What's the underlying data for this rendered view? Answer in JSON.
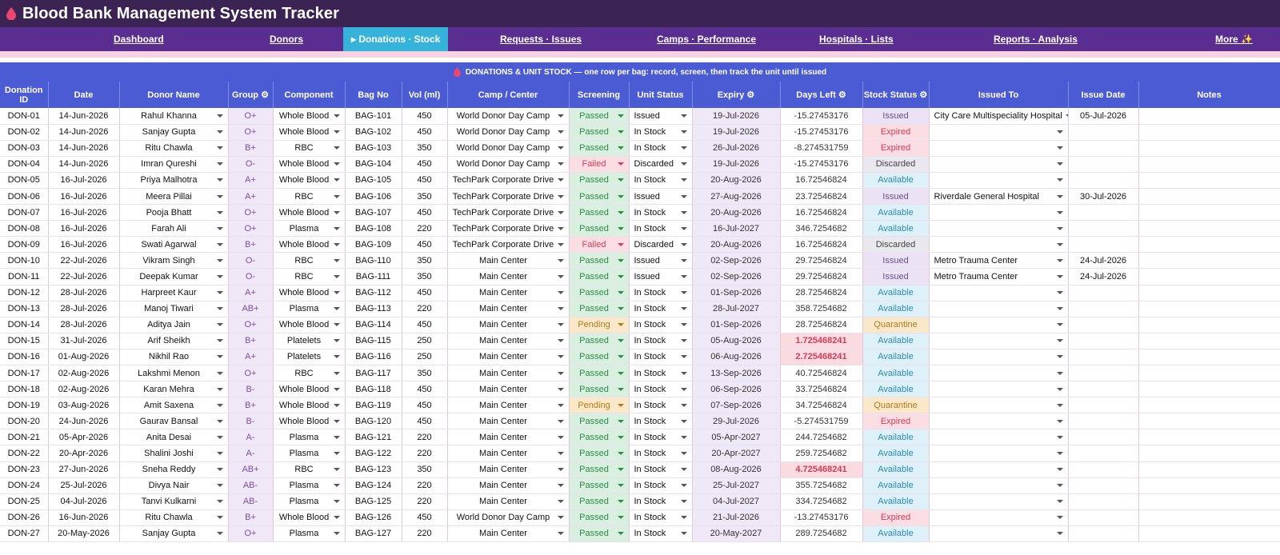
{
  "app": {
    "title": "Blood Bank Management System Tracker"
  },
  "nav": [
    {
      "label": "Dashboard",
      "left": 142,
      "active": false
    },
    {
      "label": "Donors",
      "left": 337,
      "active": false
    },
    {
      "label": "▸ Donations · Stock",
      "left": 429,
      "active": true
    },
    {
      "label": "Requests · Issues",
      "left": 625,
      "active": false
    },
    {
      "label": "Camps · Performance",
      "left": 821,
      "active": false
    },
    {
      "label": "Hospitals · Lists",
      "left": 1024,
      "active": false
    },
    {
      "label": "Reports · Analysis",
      "left": 1242,
      "active": false
    },
    {
      "label": "More ✨",
      "left": 1519,
      "active": false
    }
  ],
  "banner": {
    "text": "DONATIONS & UNIT STOCK — one row per bag: record, screen, then track the unit until issued"
  },
  "columns": [
    "Donation ID",
    "Date",
    "Donor Name",
    "Group ⚙",
    "Component",
    "Bag No",
    "Vol (ml)",
    "Camp / Center",
    "Screening",
    "Unit Status",
    "Expiry ⚙",
    "Days Left ⚙",
    "Stock Status ⚙",
    "Issued To",
    "Issue Date",
    "Notes"
  ],
  "rows": [
    {
      "id": "DON-01",
      "date": "14-Jun-2026",
      "donor": "Rahul Khanna",
      "group": "O+",
      "component": "Whole Blood",
      "bag": "BAG-101",
      "vol": "450",
      "camp": "World Donor Day Camp",
      "screening": "Passed",
      "unit": "Issued",
      "expiry": "19-Jul-2026",
      "days": "-15.27453176",
      "stock": "Issued",
      "issued_to": "City Care Multispeciality Hospital",
      "issue_date": "05-Jul-2026"
    },
    {
      "id": "DON-02",
      "date": "14-Jun-2026",
      "donor": "Sanjay Gupta",
      "group": "O+",
      "component": "Whole Blood",
      "bag": "BAG-102",
      "vol": "450",
      "camp": "World Donor Day Camp",
      "screening": "Passed",
      "unit": "In Stock",
      "expiry": "19-Jul-2026",
      "days": "-15.27453176",
      "stock": "Expired",
      "issued_to": "",
      "issue_date": ""
    },
    {
      "id": "DON-03",
      "date": "14-Jun-2026",
      "donor": "Ritu Chawla",
      "group": "B+",
      "component": "RBC",
      "bag": "BAG-103",
      "vol": "350",
      "camp": "World Donor Day Camp",
      "screening": "Passed",
      "unit": "In Stock",
      "expiry": "26-Jul-2026",
      "days": "-8.274531759",
      "stock": "Expired",
      "issued_to": "",
      "issue_date": ""
    },
    {
      "id": "DON-04",
      "date": "14-Jun-2026",
      "donor": "Imran Qureshi",
      "group": "O-",
      "component": "Whole Blood",
      "bag": "BAG-104",
      "vol": "450",
      "camp": "World Donor Day Camp",
      "screening": "Failed",
      "unit": "Discarded",
      "expiry": "19-Jul-2026",
      "days": "-15.27453176",
      "stock": "Discarded",
      "issued_to": "",
      "issue_date": ""
    },
    {
      "id": "DON-05",
      "date": "16-Jul-2026",
      "donor": "Priya Malhotra",
      "group": "A+",
      "component": "Whole Blood",
      "bag": "BAG-105",
      "vol": "450",
      "camp": "TechPark Corporate Drive",
      "screening": "Passed",
      "unit": "In Stock",
      "expiry": "20-Aug-2026",
      "days": "16.72546824",
      "stock": "Available",
      "issued_to": "",
      "issue_date": ""
    },
    {
      "id": "DON-06",
      "date": "16-Jul-2026",
      "donor": "Meera Pillai",
      "group": "A+",
      "component": "RBC",
      "bag": "BAG-106",
      "vol": "350",
      "camp": "TechPark Corporate Drive",
      "screening": "Passed",
      "unit": "Issued",
      "expiry": "27-Aug-2026",
      "days": "23.72546824",
      "stock": "Issued",
      "issued_to": "Riverdale General Hospital",
      "issue_date": "30-Jul-2026"
    },
    {
      "id": "DON-07",
      "date": "16-Jul-2026",
      "donor": "Pooja Bhatt",
      "group": "O+",
      "component": "Whole Blood",
      "bag": "BAG-107",
      "vol": "450",
      "camp": "TechPark Corporate Drive",
      "screening": "Passed",
      "unit": "In Stock",
      "expiry": "20-Aug-2026",
      "days": "16.72546824",
      "stock": "Available",
      "issued_to": "",
      "issue_date": ""
    },
    {
      "id": "DON-08",
      "date": "16-Jul-2026",
      "donor": "Farah Ali",
      "group": "O+",
      "component": "Plasma",
      "bag": "BAG-108",
      "vol": "220",
      "camp": "TechPark Corporate Drive",
      "screening": "Passed",
      "unit": "In Stock",
      "expiry": "16-Jul-2027",
      "days": "346.7254682",
      "stock": "Available",
      "issued_to": "",
      "issue_date": ""
    },
    {
      "id": "DON-09",
      "date": "16-Jul-2026",
      "donor": "Swati Agarwal",
      "group": "B+",
      "component": "Whole Blood",
      "bag": "BAG-109",
      "vol": "450",
      "camp": "TechPark Corporate Drive",
      "screening": "Failed",
      "unit": "Discarded",
      "expiry": "20-Aug-2026",
      "days": "16.72546824",
      "stock": "Discarded",
      "issued_to": "",
      "issue_date": ""
    },
    {
      "id": "DON-10",
      "date": "22-Jul-2026",
      "donor": "Vikram Singh",
      "group": "O-",
      "component": "RBC",
      "bag": "BAG-110",
      "vol": "350",
      "camp": "Main Center",
      "screening": "Passed",
      "unit": "Issued",
      "expiry": "02-Sep-2026",
      "days": "29.72546824",
      "stock": "Issued",
      "issued_to": "Metro Trauma Center",
      "issue_date": "24-Jul-2026"
    },
    {
      "id": "DON-11",
      "date": "22-Jul-2026",
      "donor": "Deepak Kumar",
      "group": "O-",
      "component": "RBC",
      "bag": "BAG-111",
      "vol": "350",
      "camp": "Main Center",
      "screening": "Passed",
      "unit": "Issued",
      "expiry": "02-Sep-2026",
      "days": "29.72546824",
      "stock": "Issued",
      "issued_to": "Metro Trauma Center",
      "issue_date": "24-Jul-2026"
    },
    {
      "id": "DON-12",
      "date": "28-Jul-2026",
      "donor": "Harpreet Kaur",
      "group": "A+",
      "component": "Whole Blood",
      "bag": "BAG-112",
      "vol": "450",
      "camp": "Main Center",
      "screening": "Passed",
      "unit": "In Stock",
      "expiry": "01-Sep-2026",
      "days": "28.72546824",
      "stock": "Available",
      "issued_to": "",
      "issue_date": ""
    },
    {
      "id": "DON-13",
      "date": "28-Jul-2026",
      "donor": "Manoj Tiwari",
      "group": "AB+",
      "component": "Plasma",
      "bag": "BAG-113",
      "vol": "220",
      "camp": "Main Center",
      "screening": "Passed",
      "unit": "In Stock",
      "expiry": "28-Jul-2027",
      "days": "358.7254682",
      "stock": "Available",
      "issued_to": "",
      "issue_date": ""
    },
    {
      "id": "DON-14",
      "date": "28-Jul-2026",
      "donor": "Aditya Jain",
      "group": "O+",
      "component": "Whole Blood",
      "bag": "BAG-114",
      "vol": "450",
      "camp": "Main Center",
      "screening": "Pending",
      "unit": "In Stock",
      "expiry": "01-Sep-2026",
      "days": "28.72546824",
      "stock": "Quarantine",
      "issued_to": "",
      "issue_date": ""
    },
    {
      "id": "DON-15",
      "date": "31-Jul-2026",
      "donor": "Arif Sheikh",
      "group": "B+",
      "component": "Platelets",
      "bag": "BAG-115",
      "vol": "250",
      "camp": "Main Center",
      "screening": "Passed",
      "unit": "In Stock",
      "expiry": "05-Aug-2026",
      "days": "1.725468241",
      "stock": "Available",
      "issued_to": "",
      "issue_date": "",
      "low": true
    },
    {
      "id": "DON-16",
      "date": "01-Aug-2026",
      "donor": "Nikhil Rao",
      "group": "A+",
      "component": "Platelets",
      "bag": "BAG-116",
      "vol": "250",
      "camp": "Main Center",
      "screening": "Passed",
      "unit": "In Stock",
      "expiry": "06-Aug-2026",
      "days": "2.725468241",
      "stock": "Available",
      "issued_to": "",
      "issue_date": "",
      "low": true
    },
    {
      "id": "DON-17",
      "date": "02-Aug-2026",
      "donor": "Lakshmi Menon",
      "group": "O+",
      "component": "RBC",
      "bag": "BAG-117",
      "vol": "350",
      "camp": "Main Center",
      "screening": "Passed",
      "unit": "In Stock",
      "expiry": "13-Sep-2026",
      "days": "40.72546824",
      "stock": "Available",
      "issued_to": "",
      "issue_date": ""
    },
    {
      "id": "DON-18",
      "date": "02-Aug-2026",
      "donor": "Karan Mehra",
      "group": "B-",
      "component": "Whole Blood",
      "bag": "BAG-118",
      "vol": "450",
      "camp": "Main Center",
      "screening": "Passed",
      "unit": "In Stock",
      "expiry": "06-Sep-2026",
      "days": "33.72546824",
      "stock": "Available",
      "issued_to": "",
      "issue_date": ""
    },
    {
      "id": "DON-19",
      "date": "03-Aug-2026",
      "donor": "Amit Saxena",
      "group": "B+",
      "component": "Whole Blood",
      "bag": "BAG-119",
      "vol": "450",
      "camp": "Main Center",
      "screening": "Pending",
      "unit": "In Stock",
      "expiry": "07-Sep-2026",
      "days": "34.72546824",
      "stock": "Quarantine",
      "issued_to": "",
      "issue_date": ""
    },
    {
      "id": "DON-20",
      "date": "24-Jun-2026",
      "donor": "Gaurav Bansal",
      "group": "B-",
      "component": "Whole Blood",
      "bag": "BAG-120",
      "vol": "450",
      "camp": "Main Center",
      "screening": "Passed",
      "unit": "In Stock",
      "expiry": "29-Jul-2026",
      "days": "-5.274531759",
      "stock": "Expired",
      "issued_to": "",
      "issue_date": ""
    },
    {
      "id": "DON-21",
      "date": "05-Apr-2026",
      "donor": "Anita Desai",
      "group": "A-",
      "component": "Plasma",
      "bag": "BAG-121",
      "vol": "220",
      "camp": "Main Center",
      "screening": "Passed",
      "unit": "In Stock",
      "expiry": "05-Apr-2027",
      "days": "244.7254682",
      "stock": "Available",
      "issued_to": "",
      "issue_date": ""
    },
    {
      "id": "DON-22",
      "date": "20-Apr-2026",
      "donor": "Shalini Joshi",
      "group": "A-",
      "component": "Plasma",
      "bag": "BAG-122",
      "vol": "220",
      "camp": "Main Center",
      "screening": "Passed",
      "unit": "In Stock",
      "expiry": "20-Apr-2027",
      "days": "259.7254682",
      "stock": "Available",
      "issued_to": "",
      "issue_date": ""
    },
    {
      "id": "DON-23",
      "date": "27-Jun-2026",
      "donor": "Sneha Reddy",
      "group": "AB+",
      "component": "RBC",
      "bag": "BAG-123",
      "vol": "350",
      "camp": "Main Center",
      "screening": "Passed",
      "unit": "In Stock",
      "expiry": "08-Aug-2026",
      "days": "4.725468241",
      "stock": "Available",
      "issued_to": "",
      "issue_date": "",
      "low": true
    },
    {
      "id": "DON-24",
      "date": "25-Jul-2026",
      "donor": "Divya Nair",
      "group": "AB-",
      "component": "Plasma",
      "bag": "BAG-124",
      "vol": "220",
      "camp": "Main Center",
      "screening": "Passed",
      "unit": "In Stock",
      "expiry": "25-Jul-2027",
      "days": "355.7254682",
      "stock": "Available",
      "issued_to": "",
      "issue_date": ""
    },
    {
      "id": "DON-25",
      "date": "04-Jul-2026",
      "donor": "Tanvi Kulkarni",
      "group": "AB-",
      "component": "Plasma",
      "bag": "BAG-125",
      "vol": "220",
      "camp": "Main Center",
      "screening": "Passed",
      "unit": "In Stock",
      "expiry": "04-Jul-2027",
      "days": "334.7254682",
      "stock": "Available",
      "issued_to": "",
      "issue_date": ""
    },
    {
      "id": "DON-26",
      "date": "16-Jun-2026",
      "donor": "Ritu Chawla",
      "group": "B+",
      "component": "Whole Blood",
      "bag": "BAG-126",
      "vol": "450",
      "camp": "World Donor Day Camp",
      "screening": "Passed",
      "unit": "In Stock",
      "expiry": "21-Jul-2026",
      "days": "-13.27453176",
      "stock": "Expired",
      "issued_to": "",
      "issue_date": ""
    },
    {
      "id": "DON-27",
      "date": "20-May-2026",
      "donor": "Sanjay Gupta",
      "group": "O+",
      "component": "Plasma",
      "bag": "BAG-127",
      "vol": "220",
      "camp": "Main Center",
      "screening": "Passed",
      "unit": "In Stock",
      "expiry": "20-May-2027",
      "days": "289.7254682",
      "stock": "Available",
      "issued_to": "",
      "issue_date": ""
    }
  ],
  "colors": {
    "title_bg": "#3b2453",
    "nav_bg": "#5a2e91",
    "nav_active": "#35b3db",
    "header_bg": "#4a5bd4",
    "drop": "#e8486d"
  }
}
